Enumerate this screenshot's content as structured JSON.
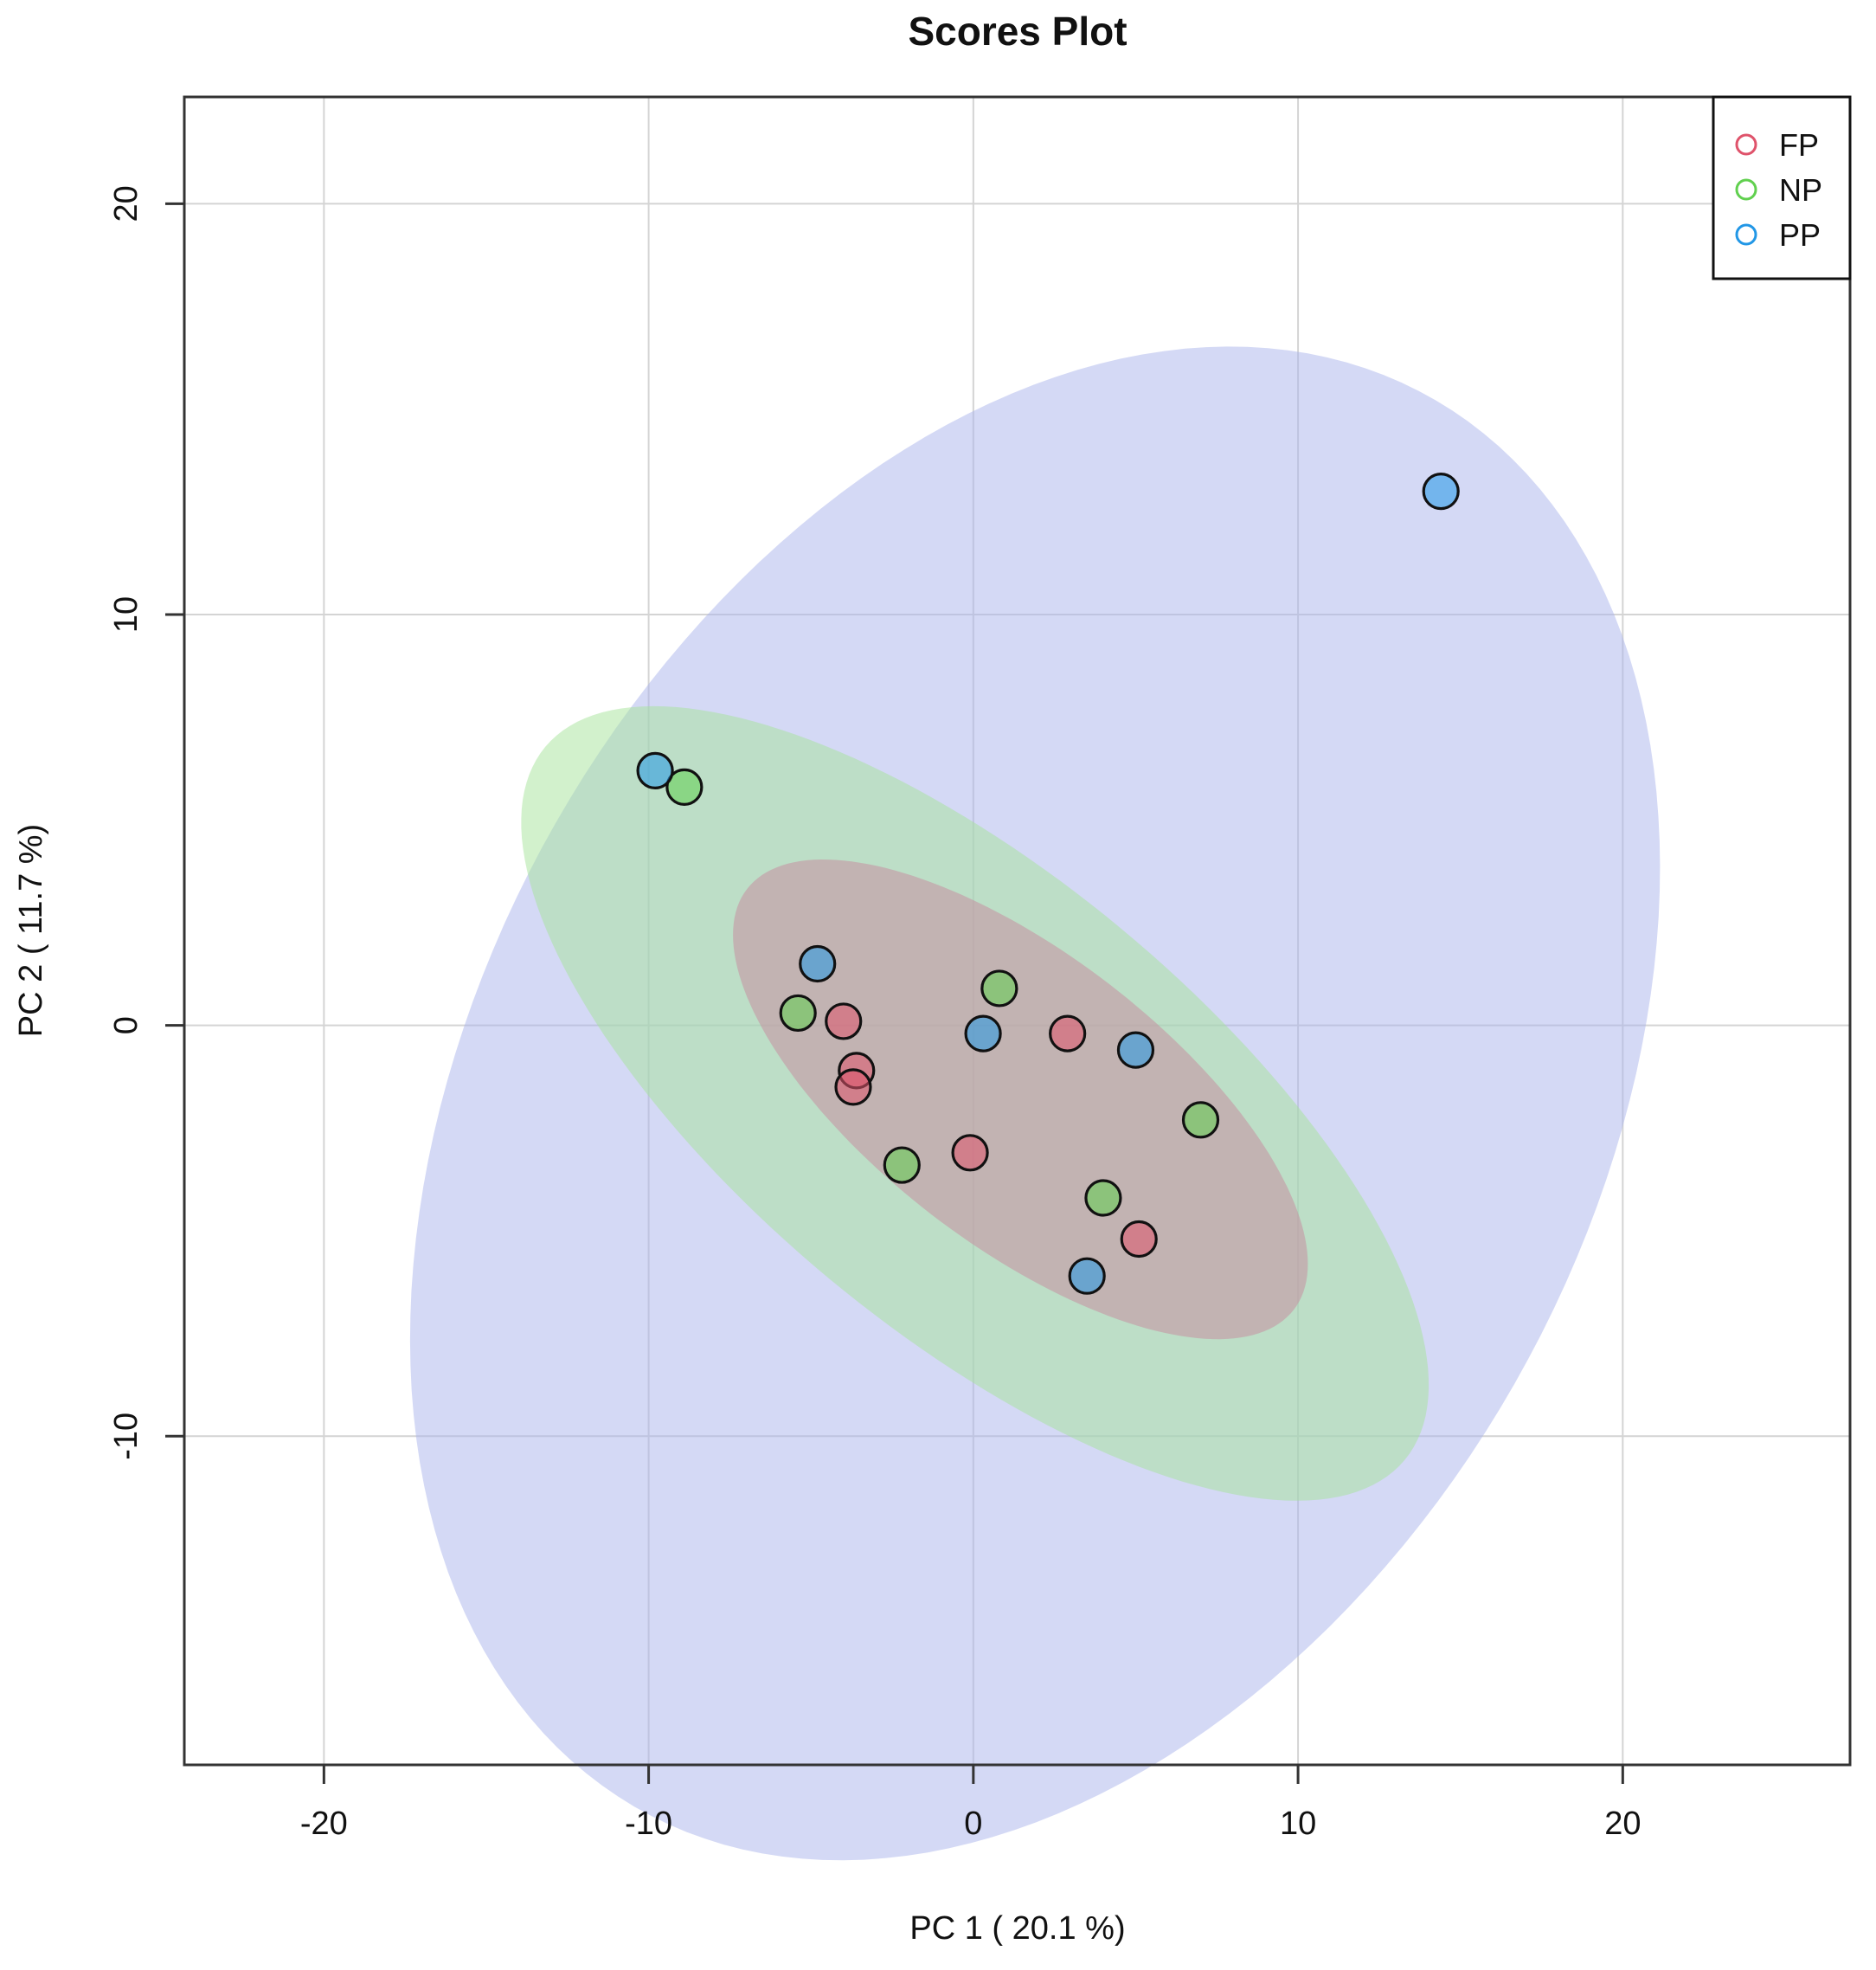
{
  "chart_data": {
    "type": "scatter",
    "title": "Scores Plot",
    "xlabel": "PC 1 ( 20.1 %)",
    "ylabel": "PC 2 ( 11.7 %)",
    "xlim": [
      -24.3,
      27.0
    ],
    "ylim": [
      -18.0,
      22.6
    ],
    "xticks": [
      -20,
      -10,
      0,
      10,
      20
    ],
    "yticks": [
      -10,
      0,
      10,
      20
    ],
    "xtick_labels": [
      "-20",
      "-10",
      "0",
      "10",
      "20"
    ],
    "ytick_labels": [
      "-10",
      "0",
      "10",
      "20"
    ],
    "grid": true,
    "legend_position": "top-right",
    "series": [
      {
        "name": "FP",
        "color": "#DF536B",
        "points": [
          [
            -4.0,
            0.1
          ],
          [
            -3.6,
            -1.1
          ],
          [
            -3.7,
            -1.5
          ],
          [
            -0.1,
            -3.1
          ],
          [
            2.9,
            -0.2
          ],
          [
            5.1,
            -5.2
          ]
        ],
        "ellipse": {
          "center": [
            1.45,
            -1.8
          ],
          "semi_axes": [
            9.9,
            3.8
          ],
          "angle_deg": -29,
          "fill": "#C7889E"
        }
      },
      {
        "name": "NP",
        "color": "#61D04F",
        "points": [
          [
            -5.4,
            0.3
          ],
          [
            -8.9,
            5.8
          ],
          [
            0.8,
            0.9
          ],
          [
            -2.2,
            -3.4
          ],
          [
            7.0,
            -2.3
          ],
          [
            4.0,
            -4.2
          ]
        ],
        "ellipse": {
          "center": [
            0.05,
            -1.9
          ],
          "semi_axes": [
            15.9,
            6.0
          ],
          "angle_deg": -31,
          "fill": "#A6E39A"
        }
      },
      {
        "name": "PP",
        "color": "#2297E6",
        "points": [
          [
            -9.8,
            6.2
          ],
          [
            -4.8,
            1.5
          ],
          [
            0.3,
            -0.2
          ],
          [
            5.0,
            -0.6
          ],
          [
            3.5,
            -6.1
          ],
          [
            14.4,
            13.0
          ]
        ],
        "ellipse": {
          "center": [
            1.9,
            -1.9
          ],
          "semi_axes": [
            21.6,
            15.6
          ],
          "angle_deg": 41,
          "fill": "#A9B4EC"
        }
      }
    ]
  }
}
